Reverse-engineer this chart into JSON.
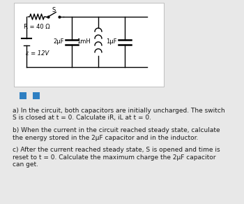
{
  "bg_color": "#e8e8e8",
  "circuit_bg": "#ffffff",
  "text_color": "#1a1a1a",
  "blue_square_color": "#2e7fc2",
  "label_R": "R = 40 Ω",
  "label_eps": "ε = 12V",
  "label_S": "S",
  "label_2uF": "2μF",
  "label_1mH": "1mH",
  "label_1uF": "1μF",
  "text_a_1": "a) In the circuit, both capacitors are initially uncharged. The switch",
  "text_a_2": "S is closed at t = 0. Calculate iR, iL at t = 0.",
  "text_b_1": "b) When the current in the circuit reached steady state, calculate",
  "text_b_2": "the energy stored in the 2μF capacitor and in the inductor.",
  "text_c_1": "c) After the current reached steady state, S is opened and time is",
  "text_c_2": "reset to t = 0. Calculate the maximum charge the 2μF capacitor",
  "text_c_3": "can get."
}
